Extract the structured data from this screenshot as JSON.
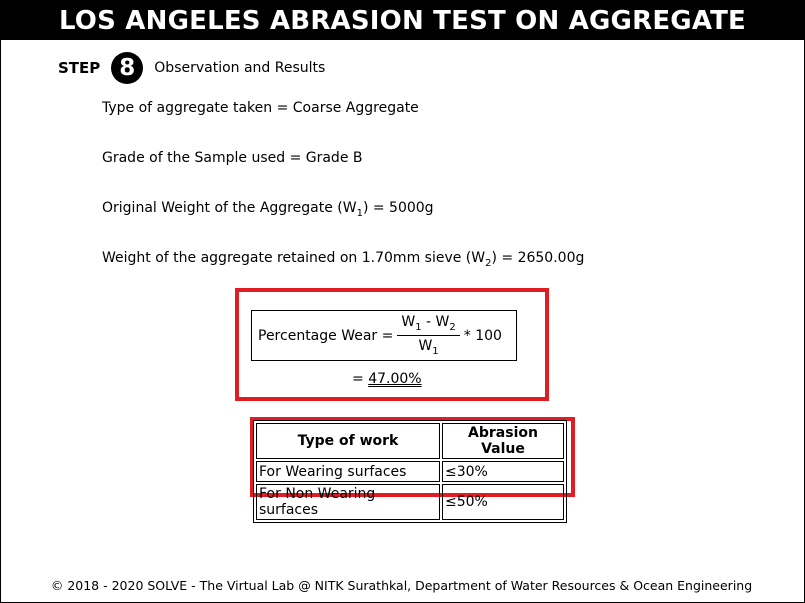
{
  "header": {
    "title": "LOS ANGELES ABRASION TEST ON AGGREGATE"
  },
  "step": {
    "word": "STEP",
    "number": "8",
    "title": "Observation and Results"
  },
  "observations": {
    "aggregate_type": "Type of aggregate taken = Coarse Aggregate",
    "grade": "Grade of the Sample used = Grade B",
    "original_weight": {
      "prefix": "Original Weight of the Aggregate (W",
      "sub": "1",
      "suffix": ") = 5000g"
    },
    "retained_weight": {
      "prefix": "Weight of the aggregate retained on 1.70mm sieve (W",
      "sub": "2",
      "suffix": ") = 2650.00g"
    }
  },
  "formula": {
    "label": "Percentage Wear =",
    "numerator": {
      "w1": "W",
      "w1_sub": "1",
      "minus": " - W",
      "w2_sub": "2"
    },
    "denominator": {
      "w": "W",
      "sub": "1"
    },
    "multiplier": "* 100",
    "result_prefix": "=",
    "result_value": "47.00%"
  },
  "table": {
    "headers": [
      "Type of work",
      "Abrasion Value"
    ],
    "rows": [
      [
        "For Wearing surfaces",
        "≤30%"
      ],
      [
        "For Non Wearing surfaces",
        "≤50%"
      ]
    ]
  },
  "footer": {
    "text": "© 2018 - 2020 SOLVE - The Virtual Lab @ NITK Surathkal, Department of Water Resources & Ocean Engineering"
  },
  "colors": {
    "highlight": "#e31b23",
    "titlebar": "#000000"
  }
}
